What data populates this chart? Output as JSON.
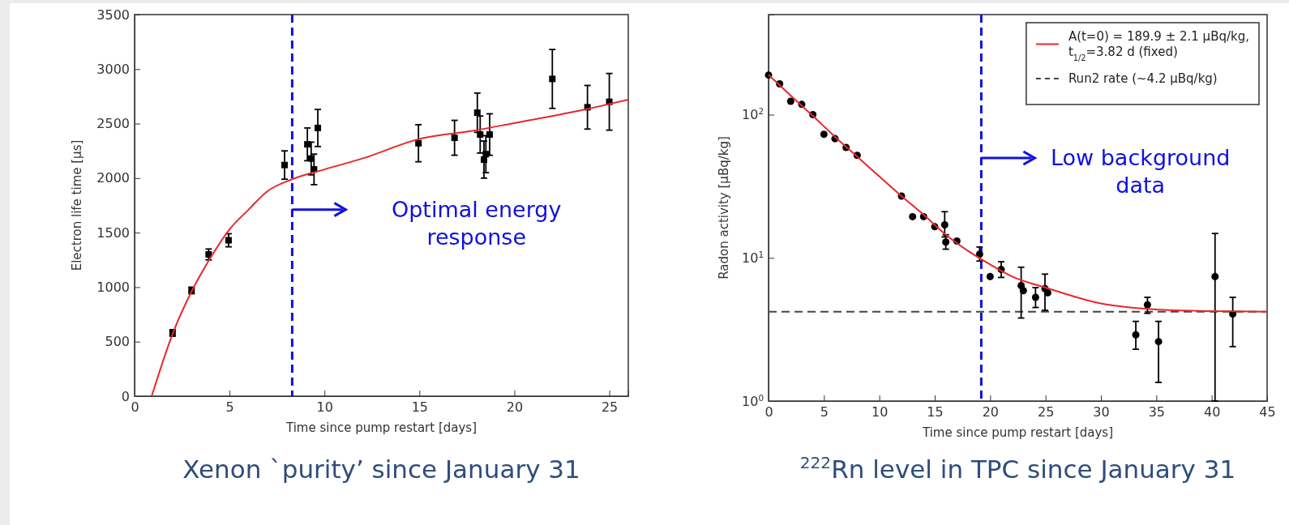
{
  "chart_data": [
    {
      "type": "scatter",
      "title": "Xenon `purity’ since January 31",
      "xlabel": "Time since pump restart [days]",
      "ylabel": "Electron life time [μs]",
      "xlim": [
        0,
        26
      ],
      "ylim": [
        0,
        3500
      ],
      "xticks": [
        0,
        5,
        10,
        15,
        20,
        25
      ],
      "yticks": [
        0,
        500,
        1000,
        1500,
        2000,
        2500,
        3000,
        3500
      ],
      "legend": false,
      "series": [
        {
          "marker": "square",
          "color": "#000000",
          "x": [
            2,
            3,
            3.9,
            4.95,
            7.9,
            9.1,
            9.3,
            9.45,
            9.65,
            14.95,
            16.85,
            18.05,
            18.2,
            18.4,
            18.5,
            18.7,
            22.0,
            23.85,
            25.0
          ],
          "values": [
            580,
            970,
            1300,
            1430,
            2120,
            2310,
            2180,
            2080,
            2460,
            2320,
            2370,
            2600,
            2400,
            2170,
            2220,
            2400,
            2910,
            2650,
            2700
          ],
          "errors": [
            30,
            30,
            50,
            60,
            130,
            150,
            150,
            140,
            170,
            170,
            160,
            180,
            170,
            170,
            170,
            190,
            270,
            200,
            260
          ]
        },
        {
          "type": "line",
          "marker": "none",
          "color": "#e8282b",
          "x": [
            0.9,
            2,
            3,
            4,
            5,
            6,
            7,
            8.3,
            10,
            12,
            15,
            18,
            20,
            22,
            24,
            26
          ],
          "values": [
            0,
            570,
            960,
            1270,
            1530,
            1710,
            1880,
            1990,
            2080,
            2180,
            2360,
            2440,
            2505,
            2570,
            2640,
            2720
          ]
        }
      ],
      "ref_lines": [
        {
          "axis": "x",
          "value": 8.3,
          "label": "Optimal energy response",
          "color": "#1010e0",
          "line_style": "dashed"
        }
      ]
    },
    {
      "type": "scatter",
      "title": "$^{222}$Rn level in TPC since January 31",
      "xlabel": "Time since pump restart [days]",
      "ylabel": "Radon activity [μBq/kg]",
      "xlim": [
        0,
        45
      ],
      "ylim": [
        1,
        500
      ],
      "log": "y",
      "xticks": [
        0,
        5,
        10,
        15,
        20,
        25,
        30,
        35,
        40,
        45
      ],
      "yticks": [
        {
          "value": 1,
          "label": "10$^{0}$"
        },
        {
          "value": 10,
          "label": "10$^{1}$"
        },
        {
          "value": 100,
          "label": "10$^{2}$"
        }
      ],
      "legend": "top right",
      "series": [
        {
          "marker": "circle",
          "color": "#000000",
          "x": [
            0,
            1,
            2,
            3,
            4,
            5,
            6,
            7,
            8,
            12,
            13,
            14,
            15,
            15.9,
            16,
            17,
            19.05,
            20,
            21,
            22.8,
            23,
            24.1,
            24.95,
            25.2,
            33.15,
            34.2,
            35.2,
            40.3,
            41.9
          ],
          "values": [
            189,
            164,
            124,
            118,
            100,
            73,
            68,
            59,
            52,
            27,
            19.4,
            19.4,
            16.5,
            17,
            12.9,
            13.1,
            10.6,
            7.4,
            8.3,
            6.4,
            5.9,
            5.3,
            6.1,
            5.7,
            2.9,
            4.7,
            2.6,
            7.4,
            4.05
          ],
          "errors": [
            null,
            null,
            null,
            null,
            null,
            null,
            null,
            null,
            null,
            null,
            null,
            null,
            null,
            [
              14,
              21
            ],
            [
              11.5,
              14.5
            ],
            null,
            [
              9.5,
              11.9
            ],
            null,
            [
              7.3,
              9.4
            ],
            [
              3.8,
              8.6
            ],
            null,
            [
              4.5,
              6.2
            ],
            [
              4.3,
              7.7
            ],
            null,
            [
              2.3,
              3.6
            ],
            [
              4.1,
              5.3
            ],
            [
              1.35,
              3.6
            ],
            [
              1,
              14.8
            ],
            [
              2.4,
              5.3
            ]
          ]
        },
        {
          "type": "line",
          "marker": "none",
          "name": "A(t=0) = 189.9 ± 2.1 μBq/kg, t$_{1/2}$=3.82 d (fixed)",
          "color": "#e8282b",
          "x": [
            0,
            2,
            4,
            6,
            8,
            10,
            12,
            14,
            16,
            18,
            20,
            22,
            25,
            30,
            35,
            40,
            45
          ],
          "values": [
            190,
            136,
            98,
            70,
            51,
            37,
            27,
            20,
            14.5,
            11.2,
            9,
            7.4,
            6.2,
            4.8,
            4.36,
            4.25,
            4.2
          ]
        }
      ],
      "ref_lines": [
        {
          "axis": "x",
          "value": 19.2,
          "label": "Low background data",
          "color": "#1010e0",
          "line_style": "dashed"
        },
        {
          "axis": "y",
          "value": 4.2,
          "label": "Run2 rate (~4.2 μBq/kg)",
          "color": "#444444",
          "line_style": "dashed"
        }
      ]
    }
  ]
}
